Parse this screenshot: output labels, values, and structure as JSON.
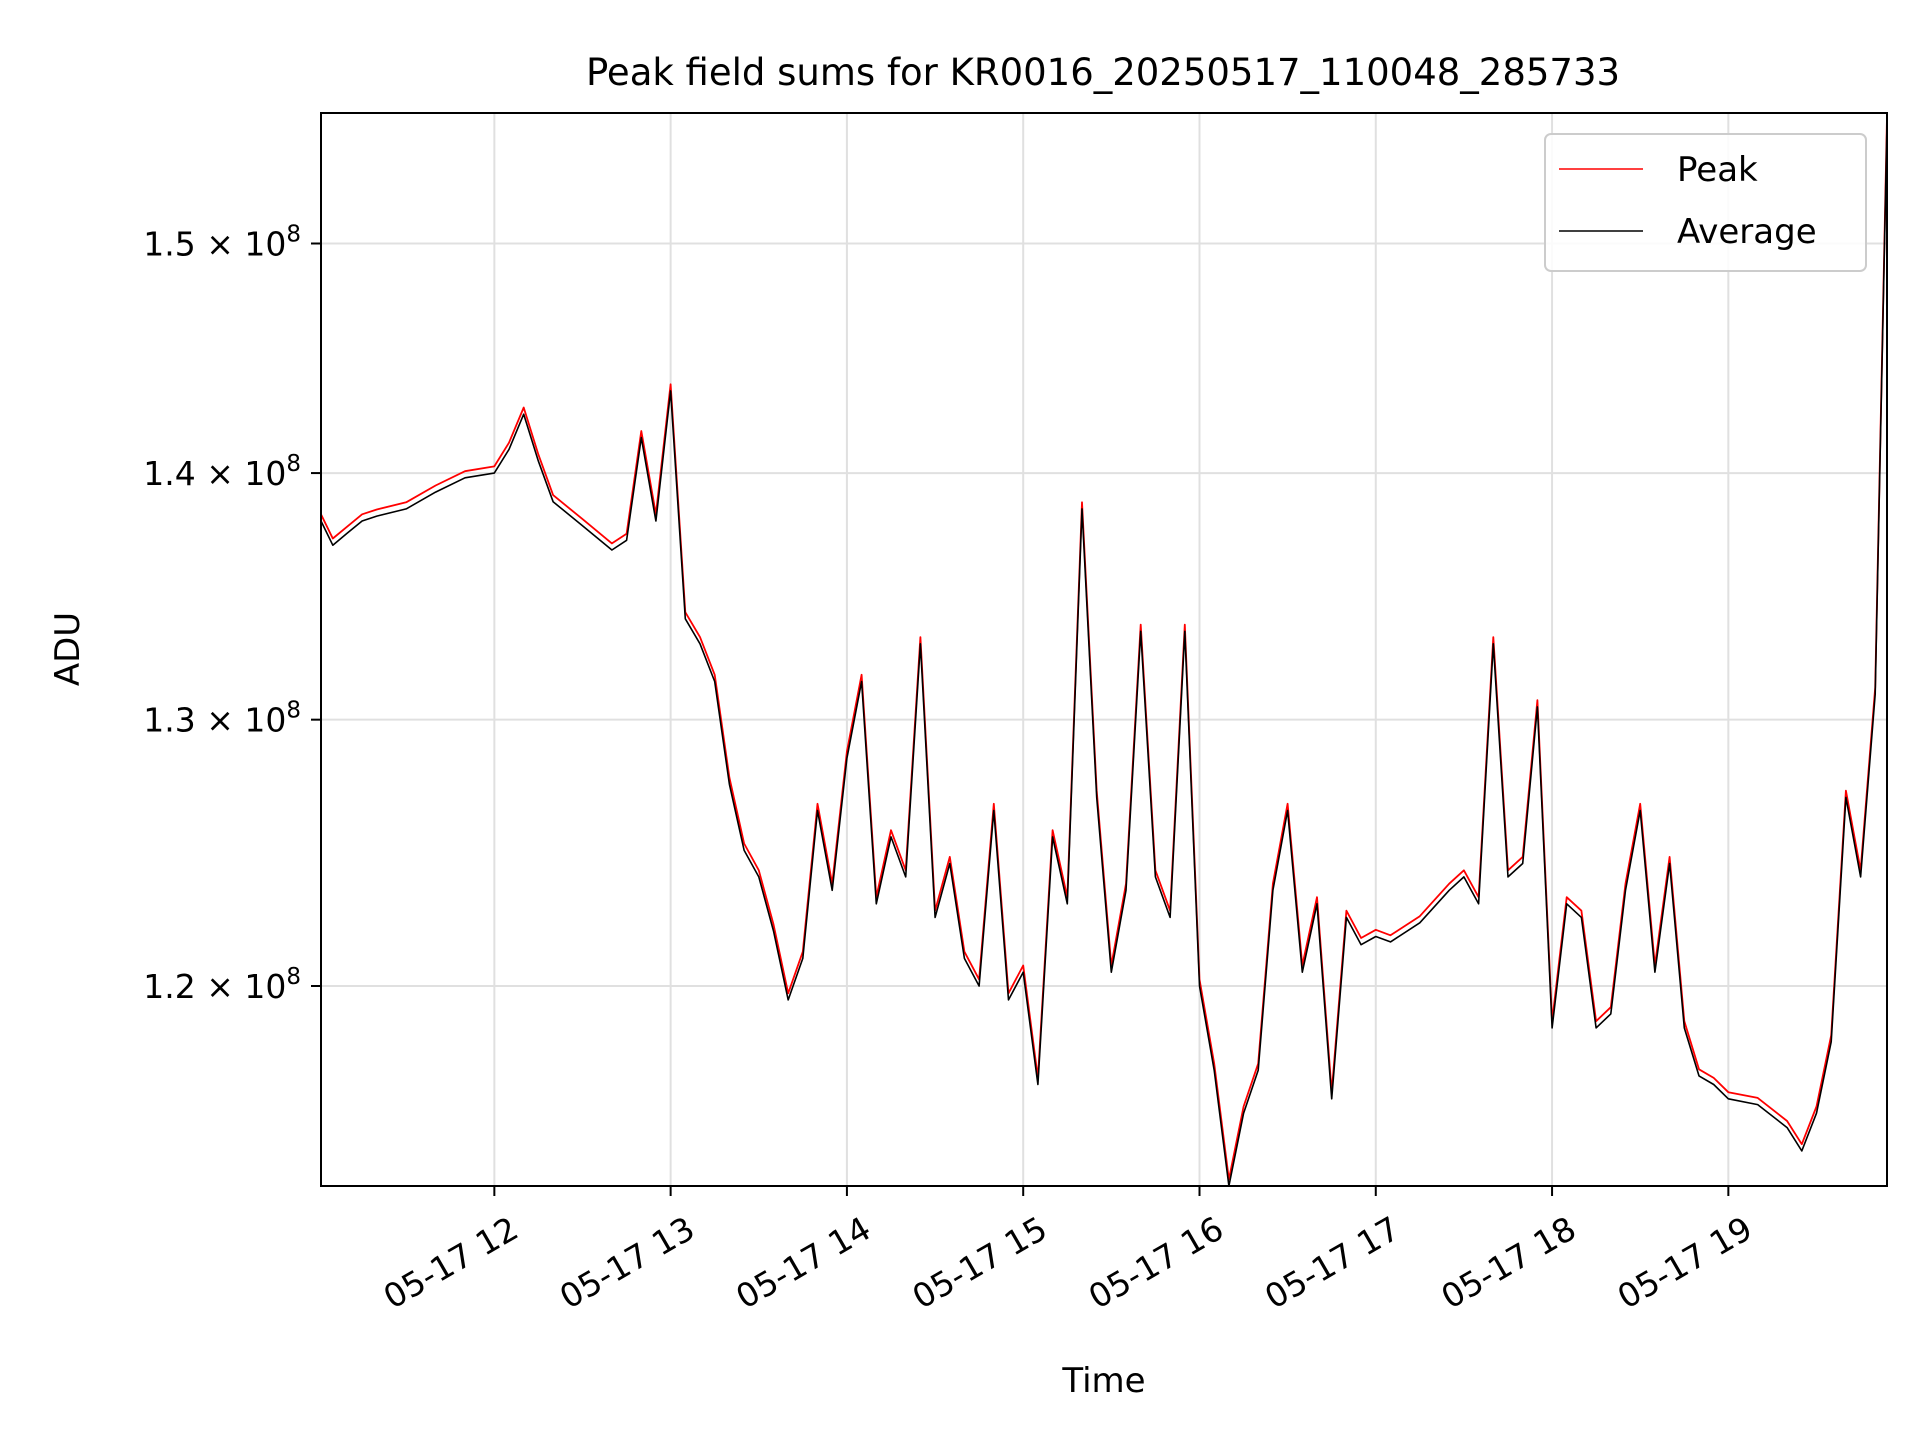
{
  "chart_data": {
    "type": "line",
    "title": "Peak field sums for KR0016_20250517_110048_285733",
    "xlabel": "Time",
    "ylabel": "ADU",
    "yscale": "log",
    "xlim": [
      "2025-05-17 11:01",
      "2025-05-17 19:54"
    ],
    "ylim": [
      113000000,
      156000000
    ],
    "x_ticks": [
      {
        "t": "2025-05-17 12:00",
        "label": "05-17 12"
      },
      {
        "t": "2025-05-17 13:00",
        "label": "05-17 13"
      },
      {
        "t": "2025-05-17 14:00",
        "label": "05-17 14"
      },
      {
        "t": "2025-05-17 15:00",
        "label": "05-17 15"
      },
      {
        "t": "2025-05-17 16:00",
        "label": "05-17 16"
      },
      {
        "t": "2025-05-17 17:00",
        "label": "05-17 17"
      },
      {
        "t": "2025-05-17 18:00",
        "label": "05-17 18"
      },
      {
        "t": "2025-05-17 19:00",
        "label": "05-17 19"
      }
    ],
    "y_ticks": [
      {
        "value": 120000000,
        "mantissa": "1.2",
        "exponent": "8"
      },
      {
        "value": 130000000,
        "mantissa": "1.3",
        "exponent": "8"
      },
      {
        "value": 140000000,
        "mantissa": "1.4",
        "exponent": "8"
      },
      {
        "value": 150000000,
        "mantissa": "1.5",
        "exponent": "8"
      }
    ],
    "grid": true,
    "legend": {
      "position": "upper-right",
      "entries": [
        "Peak",
        "Average"
      ]
    },
    "series": [
      {
        "name": "Peak",
        "color": "#ff0000",
        "x": [],
        "y": []
      },
      {
        "name": "Average",
        "color": "#000000",
        "x": [
          "2025-05-17 11:01",
          "2025-05-17 11:05",
          "2025-05-17 11:10",
          "2025-05-17 11:15",
          "2025-05-17 11:20",
          "2025-05-17 11:30",
          "2025-05-17 11:40",
          "2025-05-17 11:50",
          "2025-05-17 12:00",
          "2025-05-17 12:05",
          "2025-05-17 12:10",
          "2025-05-17 12:15",
          "2025-05-17 12:20",
          "2025-05-17 12:30",
          "2025-05-17 12:40",
          "2025-05-17 12:45",
          "2025-05-17 12:50",
          "2025-05-17 12:55",
          "2025-05-17 13:00",
          "2025-05-17 13:05",
          "2025-05-17 13:10",
          "2025-05-17 13:15",
          "2025-05-17 13:20",
          "2025-05-17 13:25",
          "2025-05-17 13:30",
          "2025-05-17 13:35",
          "2025-05-17 13:40",
          "2025-05-17 13:45",
          "2025-05-17 13:50",
          "2025-05-17 13:55",
          "2025-05-17 14:00",
          "2025-05-17 14:05",
          "2025-05-17 14:10",
          "2025-05-17 14:15",
          "2025-05-17 14:20",
          "2025-05-17 14:25",
          "2025-05-17 14:30",
          "2025-05-17 14:35",
          "2025-05-17 14:40",
          "2025-05-17 14:45",
          "2025-05-17 14:50",
          "2025-05-17 14:55",
          "2025-05-17 15:00",
          "2025-05-17 15:05",
          "2025-05-17 15:10",
          "2025-05-17 15:15",
          "2025-05-17 15:20",
          "2025-05-17 15:25",
          "2025-05-17 15:30",
          "2025-05-17 15:35",
          "2025-05-17 15:40",
          "2025-05-17 15:45",
          "2025-05-17 15:50",
          "2025-05-17 15:55",
          "2025-05-17 16:00",
          "2025-05-17 16:05",
          "2025-05-17 16:10",
          "2025-05-17 16:15",
          "2025-05-17 16:20",
          "2025-05-17 16:25",
          "2025-05-17 16:30",
          "2025-05-17 16:35",
          "2025-05-17 16:40",
          "2025-05-17 16:45",
          "2025-05-17 16:50",
          "2025-05-17 16:55",
          "2025-05-17 17:00",
          "2025-05-17 17:05",
          "2025-05-17 17:15",
          "2025-05-17 17:25",
          "2025-05-17 17:30",
          "2025-05-17 17:35",
          "2025-05-17 17:40",
          "2025-05-17 17:45",
          "2025-05-17 17:50",
          "2025-05-17 17:55",
          "2025-05-17 18:00",
          "2025-05-17 18:05",
          "2025-05-17 18:10",
          "2025-05-17 18:15",
          "2025-05-17 18:20",
          "2025-05-17 18:25",
          "2025-05-17 18:30",
          "2025-05-17 18:35",
          "2025-05-17 18:40",
          "2025-05-17 18:45",
          "2025-05-17 18:50",
          "2025-05-17 18:55",
          "2025-05-17 19:00",
          "2025-05-17 19:10",
          "2025-05-17 19:20",
          "2025-05-17 19:25",
          "2025-05-17 19:30",
          "2025-05-17 19:35",
          "2025-05-17 19:40",
          "2025-05-17 19:45",
          "2025-05-17 19:50",
          "2025-05-17 19:54"
        ],
        "y": [
          138000000,
          137000000,
          137500000,
          138000000,
          138200000,
          138500000,
          139200000,
          139800000,
          140000000,
          141000000,
          142500000,
          140500000,
          138800000,
          137800000,
          136800000,
          137200000,
          141500000,
          138000000,
          143500000,
          134000000,
          133000000,
          131500000,
          127500000,
          125000000,
          124000000,
          122000000,
          119500000,
          121000000,
          126500000,
          123500000,
          128500000,
          131500000,
          123000000,
          125500000,
          124000000,
          133000000,
          122500000,
          124500000,
          121000000,
          120000000,
          126500000,
          119500000,
          120500000,
          116500000,
          125500000,
          123000000,
          138500000,
          127000000,
          120500000,
          123500000,
          133500000,
          124000000,
          122500000,
          133500000,
          120000000,
          117000000,
          113000000,
          115500000,
          117000000,
          123500000,
          126500000,
          120500000,
          123000000,
          116000000,
          122500000,
          121500000,
          121800000,
          121600000,
          122300000,
          123500000,
          124000000,
          123000000,
          133000000,
          124000000,
          124500000,
          130500000,
          118500000,
          123000000,
          122500000,
          118500000,
          119000000,
          123500000,
          126500000,
          120500000,
          124500000,
          118500000,
          116800000,
          116500000,
          116000000,
          115800000,
          115000000,
          114200000,
          115500000,
          118000000,
          127000000,
          124000000,
          131000000,
          155500000
        ]
      }
    ]
  }
}
